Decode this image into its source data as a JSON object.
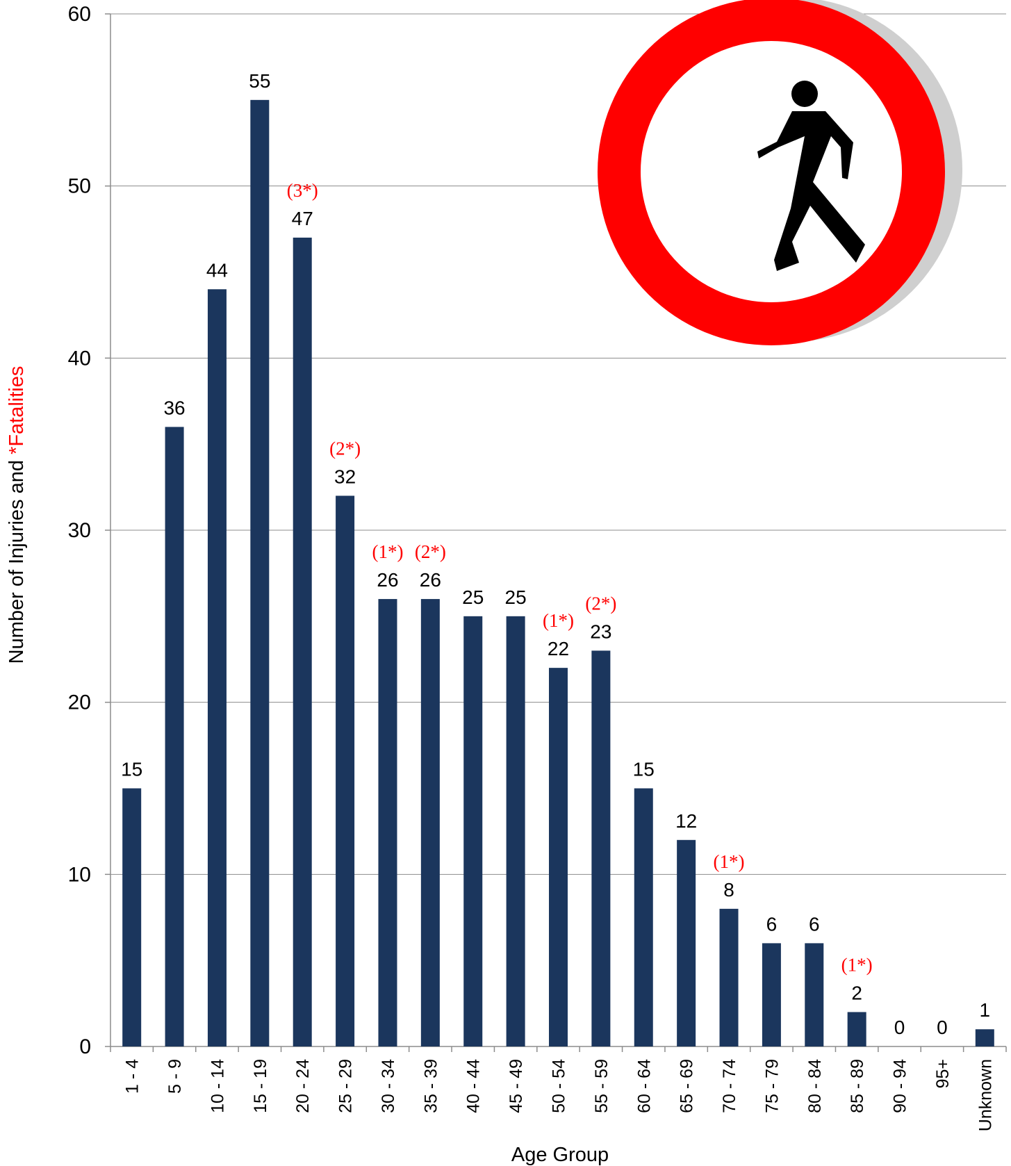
{
  "chart_data": {
    "type": "bar",
    "xlabel": "Age Group",
    "ylabel_parts": [
      "Number of Injuries and ",
      "*Fatalities"
    ],
    "ylim": [
      0,
      60
    ],
    "yticks": [
      "0",
      "10",
      "20",
      "30",
      "40",
      "50",
      "60"
    ],
    "grid": true,
    "categories": [
      "1 - 4",
      "5 - 9",
      "10 - 14",
      "15 - 19",
      "20 - 24",
      "25 - 29",
      "30 - 34",
      "35 - 39",
      "40 - 44",
      "45 - 49",
      "50 - 54",
      "55 - 59",
      "60 - 64",
      "65 - 69",
      "70 - 74",
      "75 - 79",
      "80 - 84",
      "85 - 89",
      "90 - 94",
      "95+",
      "Unknown"
    ],
    "values": [
      15,
      36,
      44,
      55,
      47,
      32,
      26,
      26,
      25,
      25,
      22,
      23,
      15,
      12,
      8,
      6,
      6,
      2,
      0,
      0,
      1
    ],
    "fatality_labels": [
      "",
      "",
      "",
      "",
      "(3*)",
      "(2*)",
      "(1*)",
      "(2*)",
      "",
      "",
      "(1*)",
      "(2*)",
      "",
      "",
      "(1*)",
      "",
      "",
      "(1*)",
      "",
      "",
      ""
    ],
    "fatalities": [
      0,
      0,
      0,
      0,
      3,
      2,
      1,
      2,
      0,
      0,
      1,
      2,
      0,
      0,
      1,
      0,
      0,
      1,
      0,
      0,
      0
    ]
  },
  "colors": {
    "bar": "#1b365d",
    "fatality": "#ff0000",
    "grid": "#8c8c8c",
    "sign_ring": "#ff0000",
    "sign_shadow": "#cfcfcf",
    "figure": "#000000"
  },
  "icon": "no-pedestrians-sign-icon"
}
